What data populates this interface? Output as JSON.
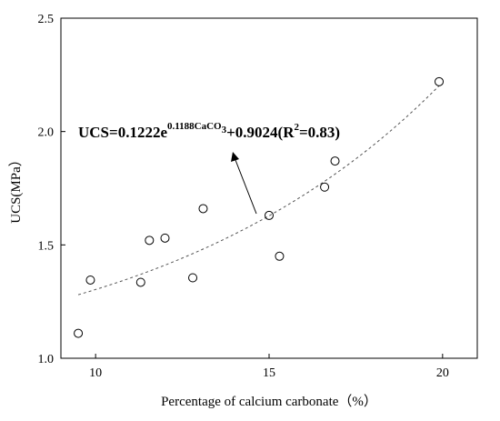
{
  "chart_data": {
    "type": "scatter",
    "xlabel": "Percentage of calcium carbonate（%）",
    "ylabel": "UCS(MPa）",
    "xlim": [
      9,
      21
    ],
    "ylim": [
      1.0,
      2.5
    ],
    "xticks": [
      "10",
      "15",
      "20"
    ],
    "yticks": [
      "1.0",
      "1.5",
      "2.0",
      "2.5"
    ],
    "grid": false,
    "points": [
      {
        "x": 9.5,
        "y": 1.11
      },
      {
        "x": 9.85,
        "y": 1.345
      },
      {
        "x": 11.3,
        "y": 1.335
      },
      {
        "x": 11.55,
        "y": 1.52
      },
      {
        "x": 12.0,
        "y": 1.53
      },
      {
        "x": 12.8,
        "y": 1.355
      },
      {
        "x": 13.1,
        "y": 1.66
      },
      {
        "x": 15.0,
        "y": 1.63
      },
      {
        "x": 15.3,
        "y": 1.45
      },
      {
        "x": 16.6,
        "y": 1.755
      },
      {
        "x": 16.9,
        "y": 1.87
      },
      {
        "x": 19.9,
        "y": 2.22
      }
    ],
    "fit": {
      "a": 0.1222,
      "b": 0.1188,
      "c": 0.9024,
      "x_range": [
        9.5,
        19.9
      ],
      "style": "dashed"
    },
    "annotation": {
      "main": "UCS=0.1222e",
      "exponent": "0.1188CaCO",
      "exponent_sub": "3",
      "rest1": "+0.9024(R",
      "r_sup": "2",
      "rest2": "=0.83)"
    }
  }
}
